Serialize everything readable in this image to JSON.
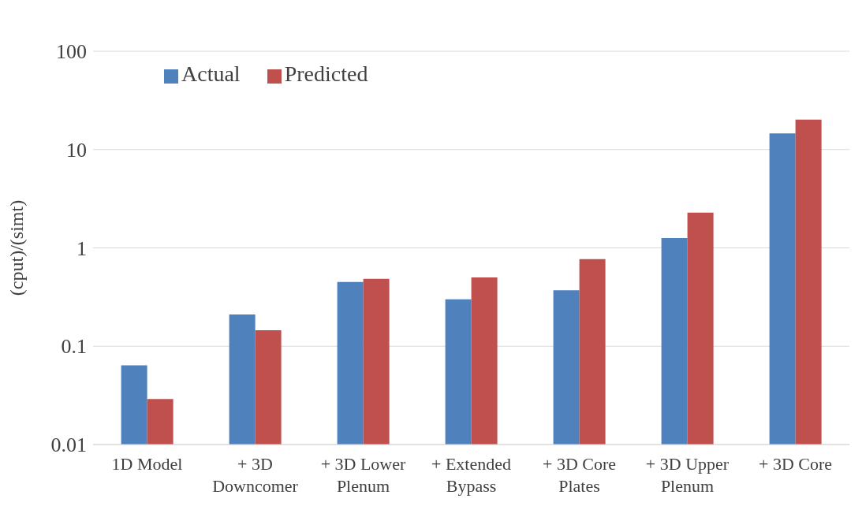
{
  "chart_data": {
    "type": "bar",
    "ylabel": "(cput)/(simt)",
    "categories": [
      "1D Model",
      "+ 3D Downcomer",
      "+ 3D Lower Plenum",
      "+ Extended Bypass",
      "+ 3D Core Plates",
      "+ 3D Upper Plenum",
      "+ 3D Core"
    ],
    "series": [
      {
        "name": "Actual",
        "color": "#4f81bd",
        "values": [
          0.064,
          0.21,
          0.45,
          0.3,
          0.37,
          1.26,
          14.6
        ]
      },
      {
        "name": "Predicted",
        "color": "#c0504d",
        "values": [
          0.029,
          0.145,
          0.485,
          0.5,
          0.77,
          2.28,
          20.2
        ]
      }
    ],
    "log": true,
    "ylim": [
      0.01,
      100
    ],
    "yticks": [
      0.01,
      0.1,
      1,
      10,
      100
    ],
    "grid": "y",
    "legend": "top left"
  }
}
